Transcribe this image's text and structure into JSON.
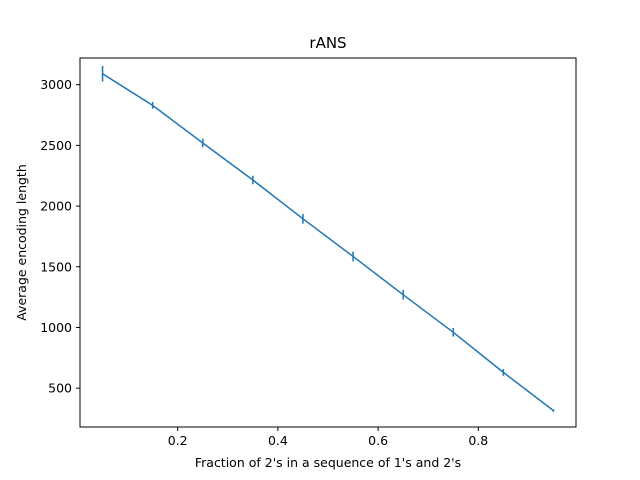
{
  "chart_data": {
    "type": "line",
    "title": "rANS",
    "xlabel": "Fraction of 2's in a sequence of 1's and 2's",
    "ylabel": "Average encoding length",
    "xlim": [
      0.005,
      0.995
    ],
    "ylim": [
      180,
      3220
    ],
    "xticks": [
      0.2,
      0.4,
      0.6,
      0.8
    ],
    "xtick_labels": [
      "0.2",
      "0.4",
      "0.6",
      "0.8"
    ],
    "yticks": [
      500,
      1000,
      1500,
      2000,
      2500,
      3000
    ],
    "ytick_labels": [
      "500",
      "1000",
      "1500",
      "2000",
      "2500",
      "3000"
    ],
    "grid": false,
    "series": [
      {
        "color": "#1f77b4",
        "x": [
          0.05,
          0.15,
          0.25,
          0.35,
          0.45,
          0.55,
          0.65,
          0.75,
          0.85,
          0.95
        ],
        "y": [
          3090,
          2830,
          2520,
          2215,
          1895,
          1585,
          1270,
          960,
          630,
          315
        ],
        "yerr": [
          65,
          28,
          35,
          35,
          40,
          40,
          40,
          35,
          28,
          10
        ]
      }
    ]
  }
}
